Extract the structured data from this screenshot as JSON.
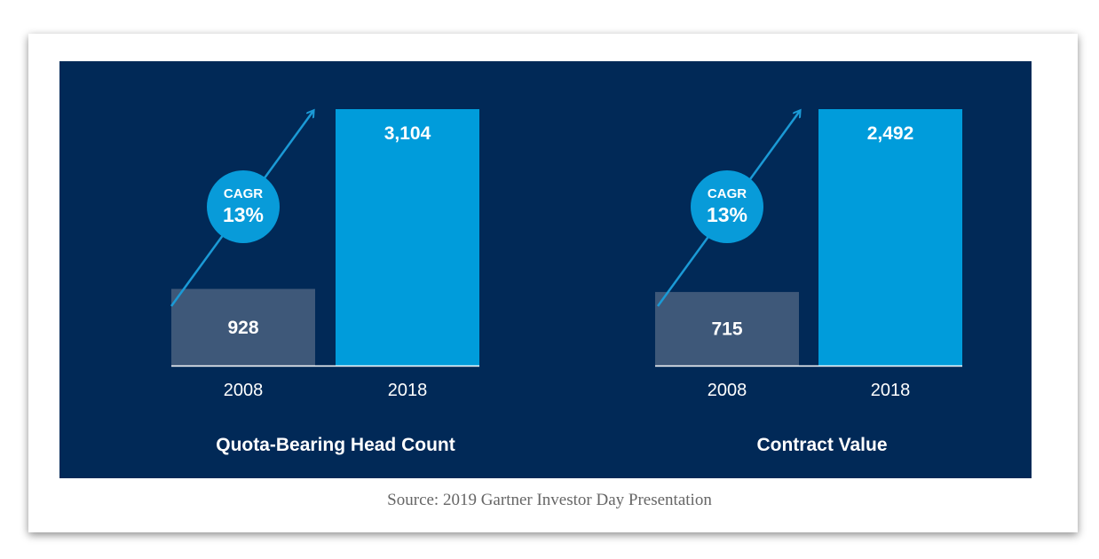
{
  "chart_data": [
    {
      "type": "bar",
      "title": "Quota-Bearing Head Count",
      "categories": [
        "2008",
        "2018"
      ],
      "values": [
        928,
        3104
      ],
      "value_labels": [
        "928",
        "3,104"
      ],
      "cagr_label": "CAGR",
      "cagr_value": "13%",
      "colors": [
        "#3e5879",
        "#009cdb"
      ]
    },
    {
      "type": "bar",
      "title": "Contract Value",
      "categories": [
        "2008",
        "2018"
      ],
      "values": [
        715,
        2492
      ],
      "value_labels": [
        "715",
        "2,492"
      ],
      "cagr_label": "CAGR",
      "cagr_value": "13%",
      "colors": [
        "#3e5879",
        "#009cdb"
      ]
    }
  ],
  "source": "Source: 2019 Gartner Investor Day Presentation"
}
